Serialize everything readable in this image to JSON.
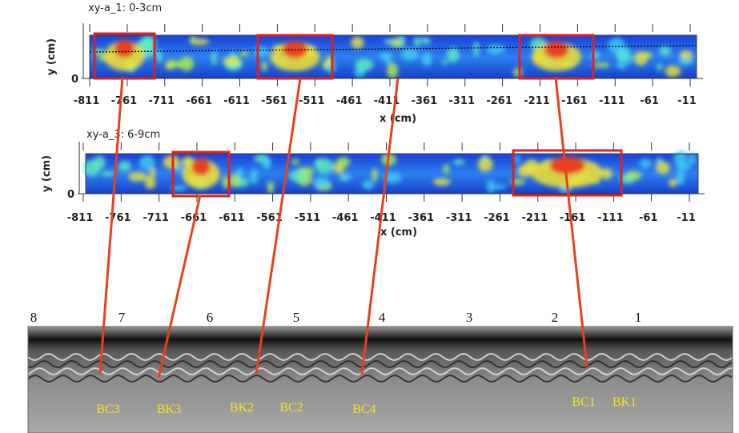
{
  "panels": [
    {
      "title": "xy-a_1: 0-3cm",
      "y_label": "y (cm)",
      "y_tick": 0,
      "x_label": "x (cm)",
      "x_ticks": [
        -811,
        -761,
        -711,
        -661,
        -611,
        -561,
        -511,
        -461,
        -411,
        -361,
        -311,
        -261,
        -211,
        -161,
        -111,
        -61,
        -11
      ]
    },
    {
      "title": "xy-a_3: 6-9cm",
      "y_label": "y (cm)",
      "y_tick": 0,
      "x_label": "x (cm)",
      "x_ticks": [
        -811,
        -761,
        -711,
        -661,
        -611,
        -561,
        -511,
        -461,
        -411,
        -361,
        -311,
        -261,
        -211,
        -161,
        -111,
        -61,
        -11
      ]
    }
  ],
  "radargram": {
    "trace_numbers": [
      8,
      7,
      6,
      5,
      4,
      3,
      2,
      1
    ],
    "annotations": [
      "BC3",
      "BK3",
      "BK2",
      "BC2",
      "BC4",
      "BC1",
      "BK1"
    ]
  }
}
